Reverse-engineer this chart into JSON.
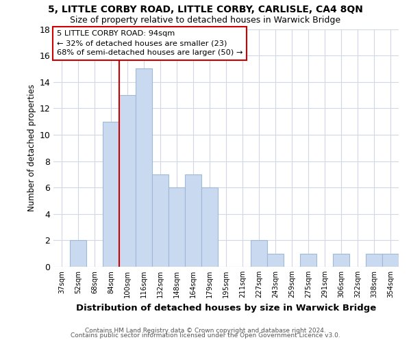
{
  "title1": "5, LITTLE CORBY ROAD, LITTLE CORBY, CARLISLE, CA4 8QN",
  "title2": "Size of property relative to detached houses in Warwick Bridge",
  "xlabel": "Distribution of detached houses by size in Warwick Bridge",
  "ylabel": "Number of detached properties",
  "categories": [
    "37sqm",
    "52sqm",
    "68sqm",
    "84sqm",
    "100sqm",
    "116sqm",
    "132sqm",
    "148sqm",
    "164sqm",
    "179sqm",
    "195sqm",
    "211sqm",
    "227sqm",
    "243sqm",
    "259sqm",
    "275sqm",
    "291sqm",
    "306sqm",
    "322sqm",
    "338sqm",
    "354sqm"
  ],
  "values": [
    0,
    2,
    0,
    11,
    13,
    15,
    7,
    6,
    7,
    6,
    0,
    0,
    2,
    1,
    0,
    1,
    0,
    1,
    0,
    1,
    1
  ],
  "bar_color": "#c9d9f0",
  "bar_edge_color": "#a0b8d8",
  "red_line_x": 4.0,
  "annotation_line1": "5 LITTLE CORBY ROAD: 94sqm",
  "annotation_line2": "← 32% of detached houses are smaller (23)",
  "annotation_line3": "68% of semi-detached houses are larger (50) →",
  "annotation_box_color": "#ffffff",
  "annotation_box_edge": "#cc0000",
  "ylim": [
    0,
    18
  ],
  "yticks": [
    0,
    2,
    4,
    6,
    8,
    10,
    12,
    14,
    16,
    18
  ],
  "footer1": "Contains HM Land Registry data © Crown copyright and database right 2024.",
  "footer2": "Contains public sector information licensed under the Open Government Licence v3.0.",
  "background_color": "#ffffff",
  "grid_color": "#d0d8e8"
}
